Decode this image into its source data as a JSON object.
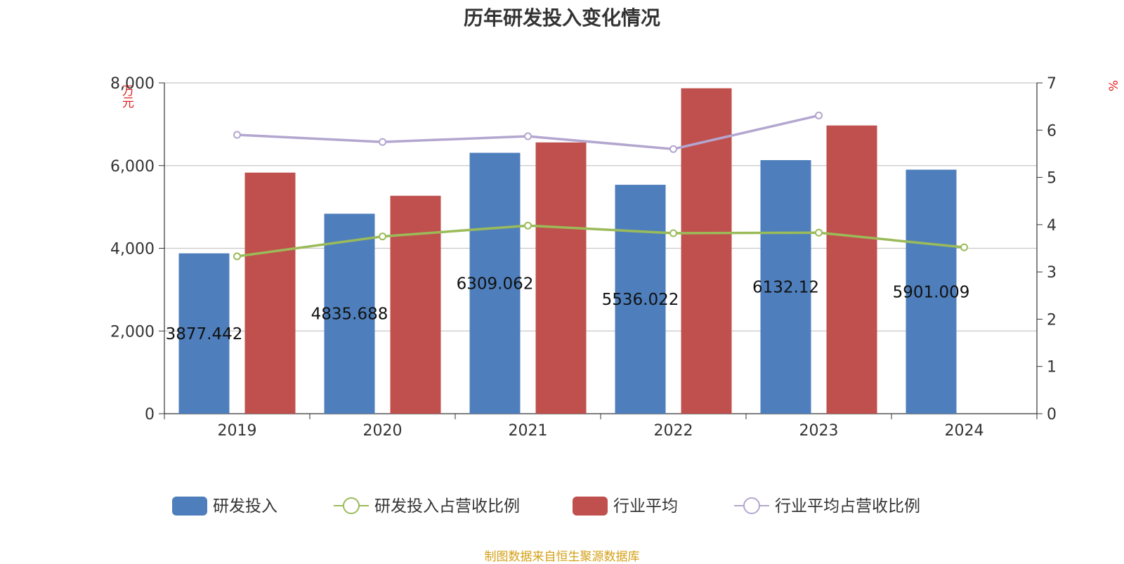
{
  "title": "历年研发投入变化情况",
  "footer": "制图数据来自恒生聚源数据库",
  "colors": {
    "rd": "#4e7fbc",
    "industry": "#c0504d",
    "rd_ratio": "#9bbb59",
    "industry_ratio": "#b3a6cf",
    "unit": "#e02020",
    "footer": "#d4a017"
  },
  "chart_data": {
    "type": "bar",
    "title": "历年研发投入变化情况",
    "categories": [
      "2019",
      "2020",
      "2021",
      "2022",
      "2023",
      "2024"
    ],
    "y_left": {
      "label": "万元",
      "min": 0,
      "max": 8000,
      "ticks": [
        "0",
        "2,000",
        "4,000",
        "6,000",
        "8,000"
      ]
    },
    "y_right": {
      "label": "%",
      "min": 0,
      "max": 7,
      "ticks": [
        "0",
        "1",
        "2",
        "3",
        "4",
        "5",
        "6",
        "7"
      ]
    },
    "grid": true,
    "legend_position": "bottom",
    "series": [
      {
        "name": "研发投入",
        "type": "bar",
        "axis": "left",
        "values": [
          3877.442,
          4835.688,
          6309.062,
          5536.022,
          6132.12,
          5901.009
        ],
        "labels": [
          "3877.442",
          "4835.688",
          "6309.062",
          "5536.022",
          "6132.12",
          "5901.009"
        ]
      },
      {
        "name": "研发投入占营收比例",
        "type": "line",
        "axis": "right",
        "values": [
          3.33,
          3.75,
          3.98,
          3.82,
          3.83,
          3.52
        ]
      },
      {
        "name": "行业平均",
        "type": "bar",
        "axis": "left",
        "values": [
          5830,
          5270,
          6560,
          7870,
          6970,
          null
        ]
      },
      {
        "name": "行业平均占营收比例",
        "type": "line",
        "axis": "right",
        "values": [
          5.9,
          5.75,
          5.87,
          5.6,
          6.31,
          null
        ]
      }
    ]
  }
}
